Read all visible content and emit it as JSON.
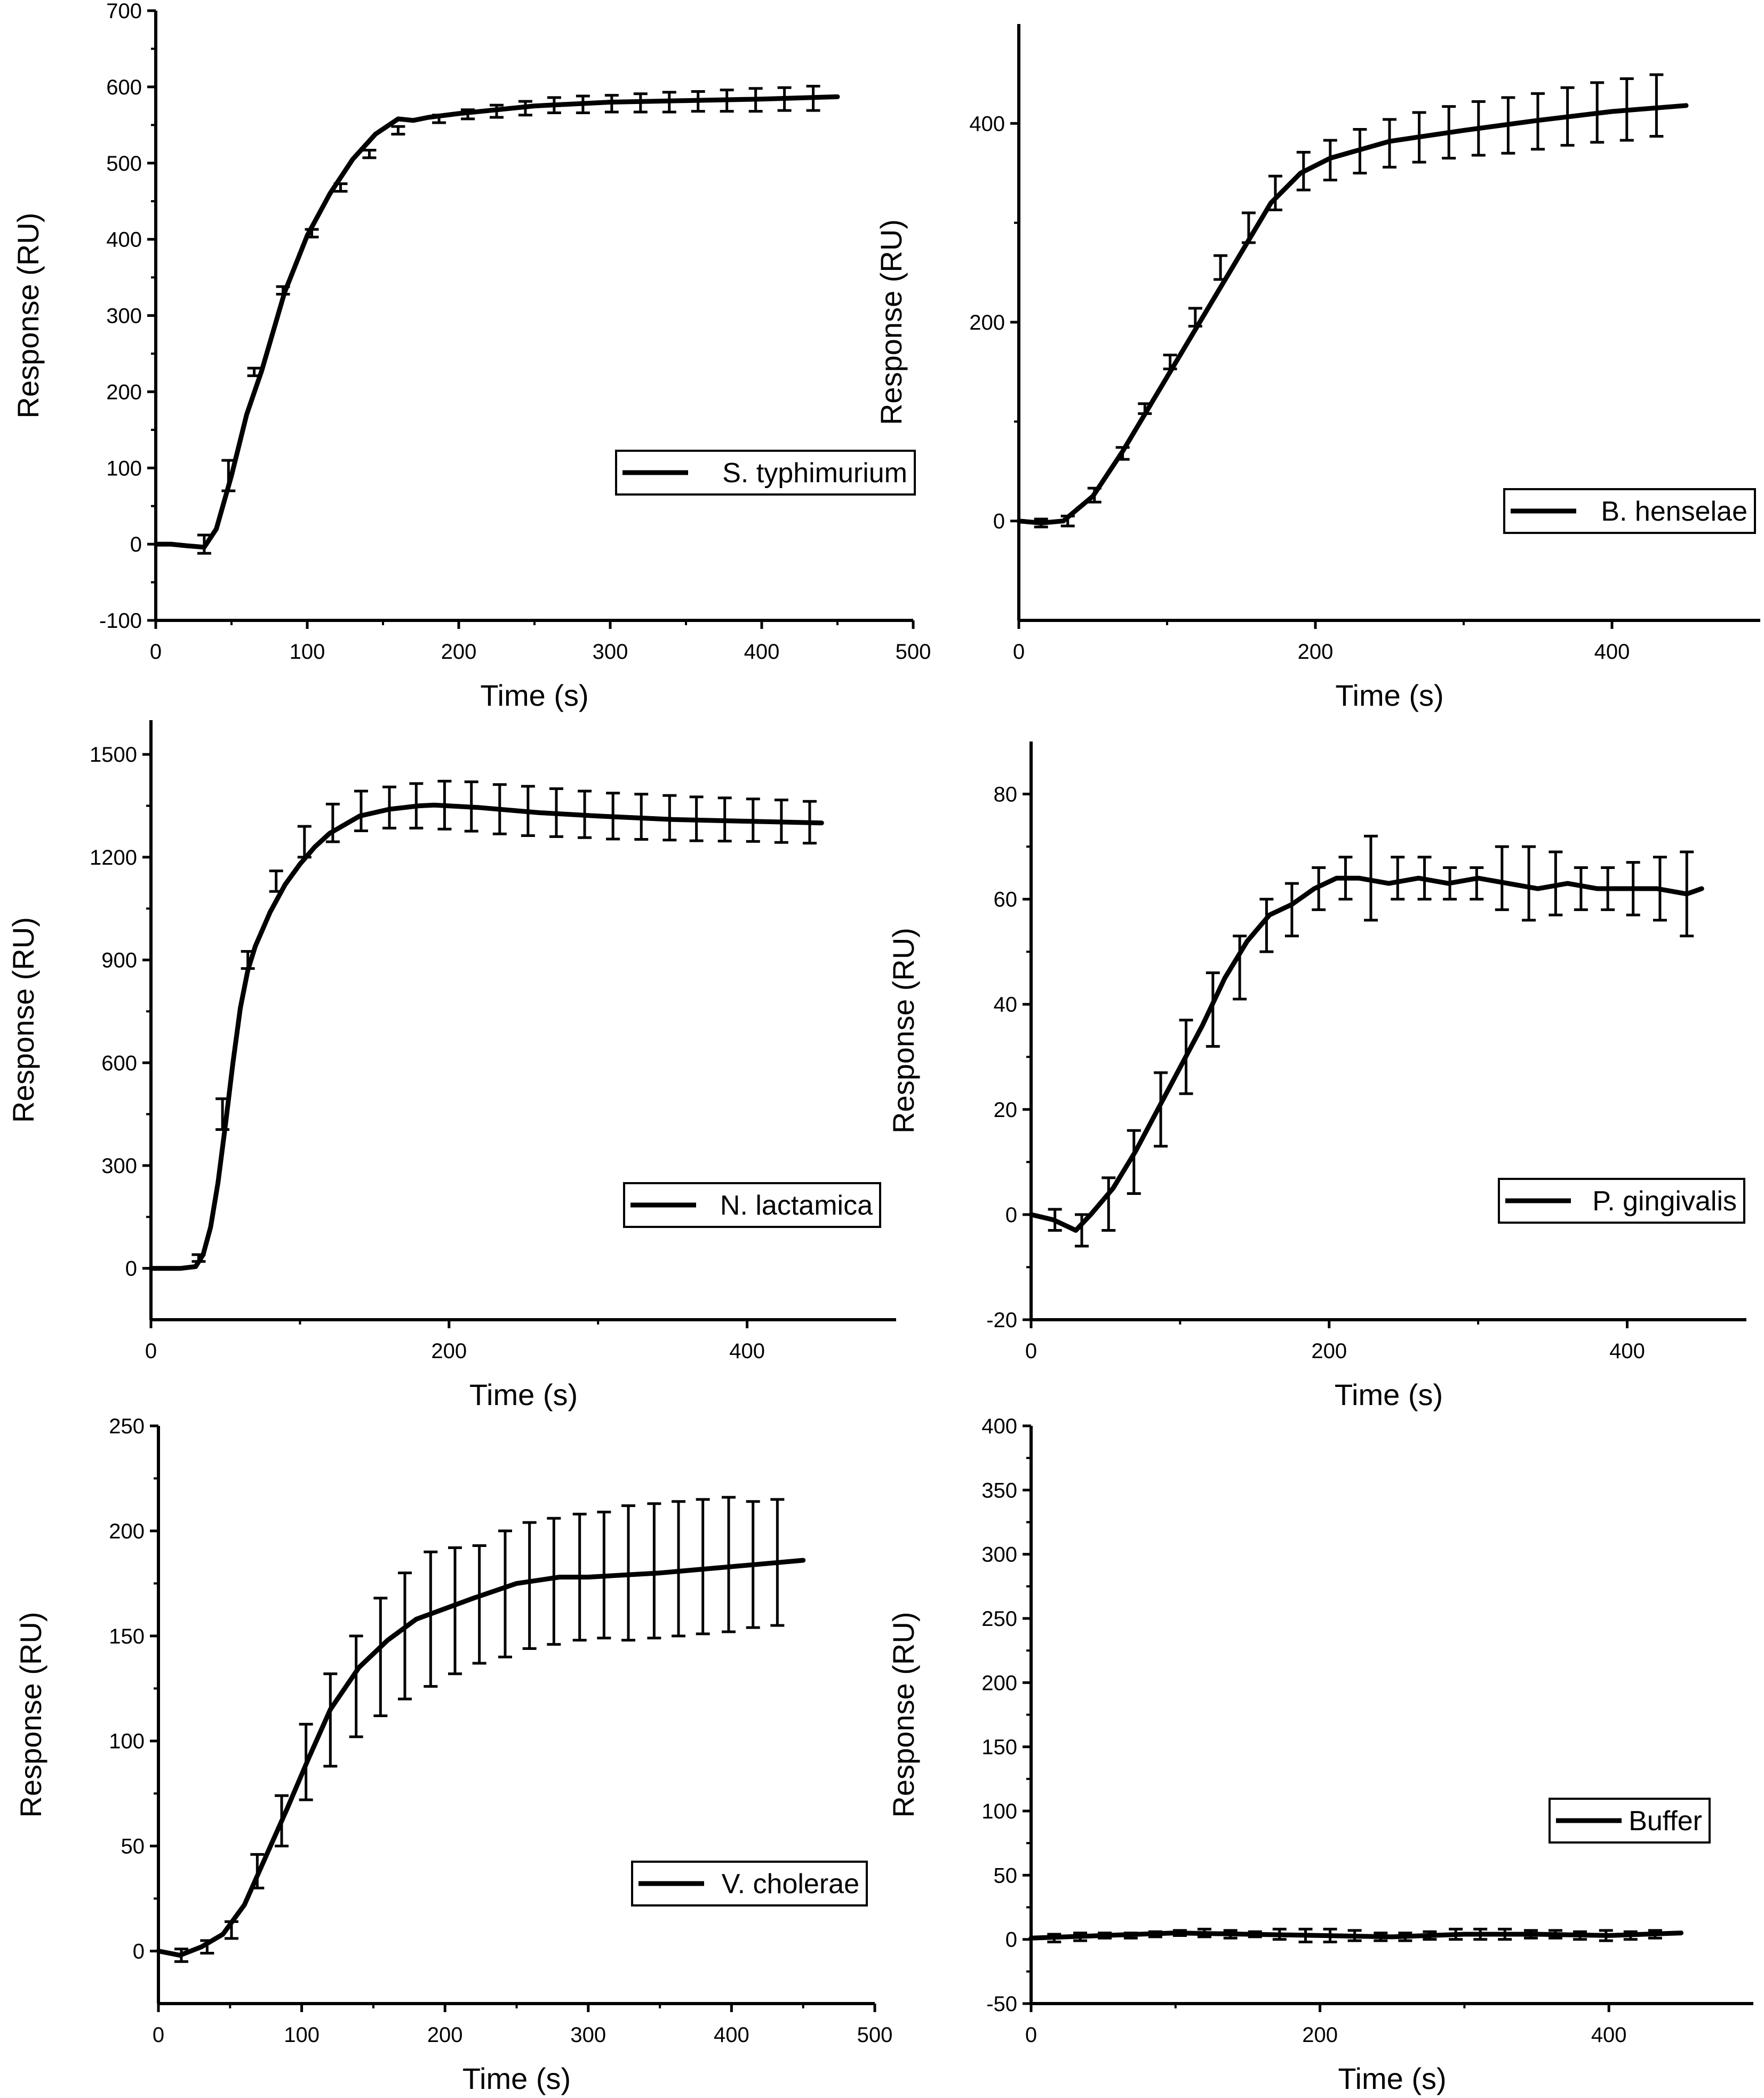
{
  "chart_data": [
    {
      "type": "line",
      "series": [
        {
          "name": "S. typhimurium"
        }
      ],
      "legend_label": "S. typhimurium",
      "xlabel": "Time (s)",
      "ylabel": "Response (RU)",
      "xlim": [
        0,
        500
      ],
      "ylim": [
        -100,
        700
      ],
      "xticks": [
        0,
        100,
        200,
        300,
        400,
        500
      ],
      "yticks": [
        -100,
        0,
        100,
        200,
        300,
        400,
        500,
        600,
        700
      ],
      "x": [
        0,
        10,
        20,
        32,
        40,
        50,
        60,
        70,
        85,
        100,
        115,
        130,
        145,
        160,
        170,
        180,
        200,
        250,
        300,
        350,
        400,
        450
      ],
      "values": [
        0,
        0,
        -2,
        -4,
        20,
        90,
        170,
        228,
        330,
        405,
        460,
        505,
        538,
        558,
        556,
        560,
        565,
        575,
        580,
        582,
        584,
        587
      ],
      "errors": {
        "x": [
          32,
          48,
          65,
          84,
          103,
          122,
          141,
          160,
          187,
          206,
          225,
          244,
          263,
          282,
          301,
          320,
          339,
          358,
          377,
          396,
          415,
          434
        ],
        "y": [
          0,
          90,
          226,
          333,
          408,
          468,
          512,
          543,
          558,
          564,
          568,
          572,
          576,
          577,
          578,
          579,
          580,
          581,
          582,
          583,
          584,
          585
        ],
        "err": [
          12,
          20,
          5,
          5,
          5,
          5,
          5,
          5,
          5,
          6,
          8,
          9,
          10,
          11,
          11,
          12,
          13,
          13,
          14,
          15,
          15,
          16
        ]
      }
    },
    {
      "type": "line",
      "series": [
        {
          "name": "B. henselae"
        }
      ],
      "legend_label": "B. henselae",
      "xlabel": "Time (s)",
      "ylabel": "Response (RU)",
      "xlim": [
        0,
        500
      ],
      "ylim": [
        -100,
        500
      ],
      "xticks": [
        0,
        200,
        400
      ],
      "yticks": [
        0,
        200,
        400
      ],
      "x": [
        0,
        15,
        30,
        50,
        70,
        90,
        110,
        130,
        150,
        170,
        190,
        210,
        250,
        300,
        350,
        400,
        450
      ],
      "values": [
        0,
        -2,
        0,
        25,
        70,
        120,
        170,
        220,
        270,
        320,
        350,
        365,
        382,
        393,
        403,
        412,
        418
      ],
      "errors": {
        "x": [
          15,
          33,
          51,
          70,
          85,
          102,
          119,
          136,
          155,
          173,
          192,
          210,
          230,
          250,
          270,
          290,
          310,
          330,
          350,
          370,
          390,
          410,
          430
        ],
        "y": [
          -2,
          0,
          26,
          68,
          113,
          160,
          205,
          255,
          295,
          330,
          352,
          363,
          372,
          380,
          386,
          391,
          395,
          398,
          402,
          407,
          411,
          414,
          418
        ],
        "err": [
          4,
          5,
          7,
          6,
          5,
          7,
          9,
          12,
          15,
          17,
          19,
          20,
          22,
          24,
          25,
          26,
          27,
          28,
          28,
          29,
          30,
          31,
          31
        ]
      }
    },
    {
      "type": "line",
      "series": [
        {
          "name": "N. lactamica"
        }
      ],
      "legend_label": "N. lactamica",
      "xlabel": "Time (s)",
      "ylabel": "Response (RU)",
      "xlim": [
        0,
        500
      ],
      "ylim": [
        -150,
        1600
      ],
      "xticks": [
        0,
        200,
        400
      ],
      "yticks": [
        0,
        300,
        600,
        900,
        1200,
        1500
      ],
      "x": [
        0,
        20,
        30,
        35,
        40,
        45,
        50,
        55,
        60,
        65,
        70,
        80,
        90,
        100,
        110,
        120,
        140,
        160,
        180,
        190,
        220,
        260,
        300,
        350,
        400,
        450
      ],
      "values": [
        0,
        0,
        5,
        40,
        120,
        250,
        420,
        600,
        760,
        870,
        940,
        1040,
        1120,
        1180,
        1230,
        1270,
        1320,
        1340,
        1350,
        1352,
        1345,
        1330,
        1320,
        1310,
        1305,
        1300
      ],
      "errors": {
        "x": [
          32,
          48,
          65,
          84,
          103,
          122,
          141,
          160,
          178,
          197,
          215,
          234,
          253,
          272,
          291,
          310,
          329,
          348,
          366,
          385,
          404,
          423,
          442
        ],
        "y": [
          30,
          450,
          900,
          1130,
          1245,
          1300,
          1335,
          1345,
          1350,
          1352,
          1348,
          1340,
          1335,
          1330,
          1325,
          1320,
          1318,
          1315,
          1312,
          1310,
          1308,
          1305,
          1302
        ],
        "err": [
          10,
          45,
          25,
          30,
          45,
          55,
          58,
          60,
          65,
          70,
          72,
          72,
          72,
          70,
          68,
          67,
          66,
          65,
          64,
          63,
          62,
          62,
          61
        ]
      }
    },
    {
      "type": "line",
      "series": [
        {
          "name": "P. gingivalis"
        }
      ],
      "legend_label": "P. gingivalis",
      "xlabel": "Time (s)",
      "ylabel": "Response (RU)",
      "xlim": [
        0,
        480
      ],
      "ylim": [
        -20,
        90
      ],
      "xticks": [
        0,
        200,
        400
      ],
      "yticks": [
        -20,
        0,
        20,
        40,
        60,
        80
      ],
      "x": [
        0,
        15,
        30,
        40,
        55,
        70,
        85,
        100,
        115,
        130,
        145,
        160,
        175,
        190,
        205,
        220,
        240,
        260,
        280,
        300,
        320,
        340,
        360,
        380,
        400,
        420,
        440,
        450
      ],
      "values": [
        0,
        -1,
        -3,
        0,
        5,
        12,
        20,
        28,
        36,
        45,
        52,
        57,
        59,
        62,
        64,
        64,
        63,
        64,
        63,
        64,
        63,
        62,
        63,
        62,
        62,
        62,
        61,
        62
      ],
      "errors": {
        "x": [
          16,
          34,
          52,
          69,
          87,
          104,
          122,
          140,
          158,
          175,
          193,
          211,
          228,
          246,
          264,
          281,
          299,
          316,
          334,
          352,
          369,
          387,
          404,
          422,
          440
        ],
        "y": [
          -1,
          -3,
          2,
          10,
          20,
          30,
          39,
          47,
          55,
          58,
          62,
          64,
          64,
          64,
          64,
          63,
          63,
          64,
          63,
          63,
          62,
          62,
          62,
          62,
          61
        ],
        "err": [
          2,
          3,
          5,
          6,
          7,
          7,
          7,
          6,
          5,
          5,
          4,
          4,
          8,
          4,
          4,
          3,
          3,
          6,
          7,
          6,
          4,
          4,
          5,
          6,
          8
        ]
      }
    },
    {
      "type": "line",
      "series": [
        {
          "name": "V. cholerae"
        }
      ],
      "legend_label": "V. cholerae",
      "xlabel": "Time (s)",
      "ylabel": "Response (RU)",
      "xlim": [
        0,
        500
      ],
      "ylim": [
        -25,
        250
      ],
      "xticks": [
        0,
        100,
        200,
        300,
        400,
        500
      ],
      "yticks": [
        0,
        50,
        100,
        150,
        200,
        250
      ],
      "x": [
        0,
        15,
        30,
        45,
        60,
        75,
        90,
        105,
        120,
        140,
        160,
        180,
        200,
        220,
        250,
        280,
        300,
        350,
        400,
        450
      ],
      "values": [
        0,
        -2,
        2,
        8,
        22,
        45,
        68,
        92,
        115,
        135,
        148,
        158,
        163,
        168,
        175,
        178,
        178,
        180,
        183,
        186
      ],
      "errors": {
        "x": [
          16,
          34,
          51,
          69,
          86,
          103,
          120,
          138,
          155,
          172,
          190,
          207,
          224,
          242,
          259,
          276,
          294,
          311,
          328,
          346,
          363,
          380,
          398,
          415,
          432
        ],
        "y": [
          -2,
          2,
          10,
          38,
          62,
          90,
          110,
          126,
          140,
          150,
          158,
          162,
          165,
          170,
          174,
          176,
          178,
          179,
          180,
          181,
          182,
          183,
          184,
          184,
          185
        ],
        "err": [
          3,
          3,
          4,
          8,
          12,
          18,
          22,
          24,
          28,
          30,
          32,
          30,
          28,
          30,
          30,
          30,
          30,
          30,
          32,
          32,
          32,
          32,
          32,
          30,
          30
        ]
      }
    },
    {
      "type": "line",
      "series": [
        {
          "name": "Buffer"
        }
      ],
      "legend_label": "Buffer",
      "xlabel": "Time (s)",
      "ylabel": "Response (RU)",
      "xlim": [
        0,
        500
      ],
      "ylim": [
        -50,
        400
      ],
      "xticks": [
        0,
        200,
        400
      ],
      "yticks": [
        -50,
        0,
        50,
        100,
        150,
        200,
        250,
        300,
        350,
        400
      ],
      "x": [
        0,
        50,
        100,
        150,
        200,
        250,
        300,
        350,
        400,
        450
      ],
      "values": [
        1,
        3,
        5,
        4,
        3,
        2,
        4,
        4,
        3,
        5
      ],
      "errors": {
        "x": [
          16,
          34,
          51,
          69,
          86,
          103,
          120,
          138,
          155,
          172,
          190,
          207,
          224,
          242,
          259,
          276,
          294,
          311,
          328,
          346,
          363,
          380,
          398,
          415,
          432
        ],
        "y": [
          1,
          2,
          3,
          3,
          4,
          5,
          5,
          4,
          4,
          4,
          3,
          3,
          3,
          2,
          2,
          3,
          4,
          4,
          4,
          4,
          4,
          3,
          3,
          3,
          4
        ],
        "err": [
          3,
          3,
          2,
          2,
          2,
          2,
          3,
          3,
          2,
          4,
          5,
          5,
          4,
          3,
          3,
          3,
          4,
          4,
          4,
          3,
          3,
          3,
          4,
          3,
          3
        ]
      }
    }
  ]
}
